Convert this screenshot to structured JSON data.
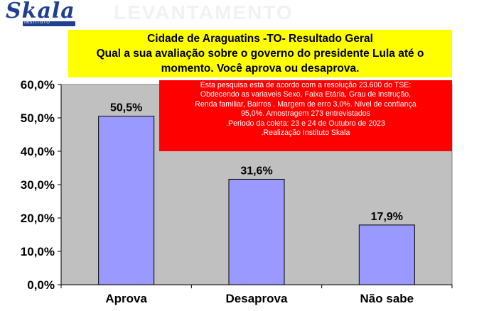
{
  "logo": {
    "name": "Skala",
    "sub": "INSTITUTO"
  },
  "header_faint": "LEVANTAMENTO",
  "title_lines": [
    "Cidade de Araguatins -TO- Resultado Geral",
    "Qual a sua avaliação sobre o governo do presidente Lula até o",
    "momento. Você aprova ou desaprova."
  ],
  "note_lines": [
    "Esta pesquisa está de acordo com a resolução 23.600 do TSE:",
    "Obdecendo as variaveis Sexo, Faixa Etária, Grau de instrução,",
    "Renda familiar, Bairros . Margem de erro 3,0%. Nível de confiança",
    "95,0%. Amostragem 273 entrevistados",
    ".Periodo da coleta: 23 e 24 de Outubro de 2023",
    ".Realização Instituto Skala"
  ],
  "chart_data": {
    "type": "bar",
    "categories": [
      "Aprova",
      "Desaprova",
      "Não sabe"
    ],
    "values": [
      50.5,
      31.6,
      17.9
    ],
    "data_labels": [
      "50,5%",
      "31,6%",
      "17,9%"
    ],
    "ylim": [
      0,
      60
    ],
    "yticks": [
      0,
      10,
      20,
      30,
      40,
      50,
      60
    ],
    "ytick_labels": [
      "0,0%",
      "10,0%",
      "20,0%",
      "30,0%",
      "40,0%",
      "50,0%",
      "60,0%"
    ],
    "grid": false,
    "colors": {
      "bar_fill": "#9999ff",
      "bar_stroke": "#000000",
      "plot_bg": "#c0c0c0",
      "title_bg": "#ffff00",
      "note_bg": "#ff0000"
    }
  }
}
